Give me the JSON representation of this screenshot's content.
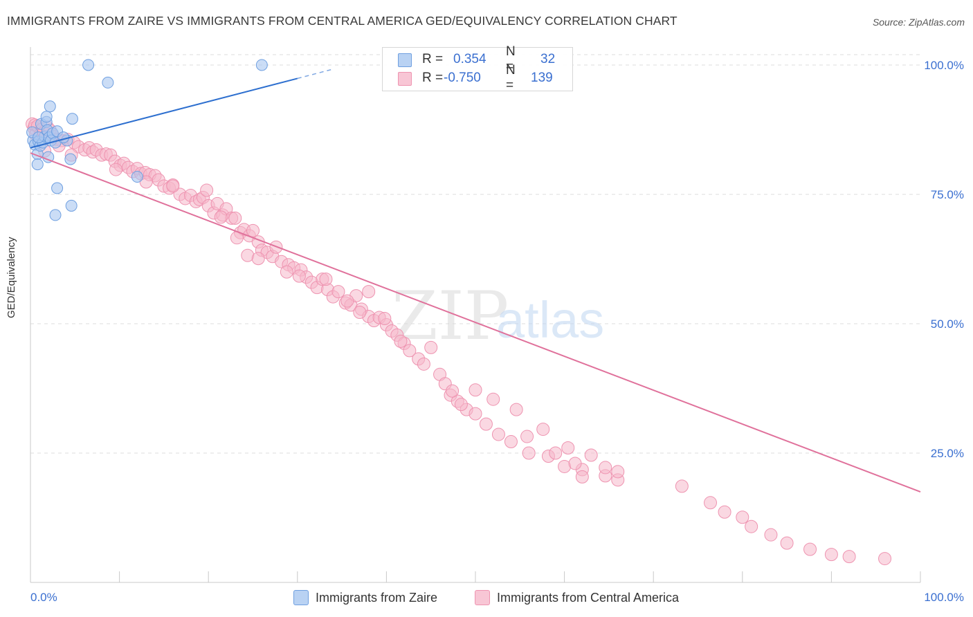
{
  "header": {
    "title": "IMMIGRANTS FROM ZAIRE VS IMMIGRANTS FROM CENTRAL AMERICA GED/EQUIVALENCY CORRELATION CHART",
    "source": "Source: ZipAtlas.com"
  },
  "watermark": {
    "zip": "ZIP",
    "atlas": "atlas"
  },
  "stats": {
    "zaire": {
      "r_label": "R =",
      "r_value": "0.354",
      "n_label": "N =",
      "n_value": "32"
    },
    "central_america": {
      "r_label": "R =",
      "r_value": "-0.750",
      "n_label": "N =",
      "n_value": "139"
    }
  },
  "legend": {
    "zaire": "Immigrants from Zaire",
    "central_america": "Immigrants from Central America"
  },
  "colors": {
    "zaire_fill": "#a9c7f0",
    "zaire_stroke": "#6e9fe0",
    "zaire_line": "#2d6fcf",
    "ca_fill": "#f6b8cb",
    "ca_stroke": "#ee93b0",
    "ca_line": "#e0719b",
    "tick_label": "#3a6fd0",
    "grid": "#dcdcdc"
  },
  "chart_data": {
    "type": "scatter",
    "title": "IMMIGRANTS FROM ZAIRE VS IMMIGRANTS FROM CENTRAL AMERICA GED/EQUIVALENCY CORRELATION CHART",
    "xlabel": "",
    "ylabel": "GED/Equivalency",
    "xlim": [
      0,
      100
    ],
    "ylim": [
      0,
      102
    ],
    "x_tick_labels": [
      "0.0%",
      "100.0%"
    ],
    "y_ticks": [
      25,
      50,
      75,
      100
    ],
    "y_tick_labels": [
      "25.0%",
      "50.0%",
      "75.0%",
      "100.0%"
    ],
    "grid": true,
    "legend_position": "bottom-center",
    "series": [
      {
        "name": "Immigrants from Zaire",
        "color": "#a9c7f0",
        "trend": {
          "x": [
            0,
            30,
            34
          ],
          "y": [
            84.0,
            97.4,
            99.2
          ],
          "dashed_after_x": 30
        },
        "points": [
          [
            0.3,
            85.4
          ],
          [
            0.5,
            84.6
          ],
          [
            0.8,
            82.8
          ],
          [
            0.9,
            85.2
          ],
          [
            1.1,
            84.4
          ],
          [
            1.2,
            88.6
          ],
          [
            1.4,
            85.0
          ],
          [
            1.6,
            86.2
          ],
          [
            1.8,
            89.0
          ],
          [
            1.9,
            87.4
          ],
          [
            2.1,
            86.0
          ],
          [
            2.3,
            85.4
          ],
          [
            2.5,
            86.8
          ],
          [
            2.8,
            85.0
          ],
          [
            3.0,
            87.2
          ],
          [
            2.2,
            92.0
          ],
          [
            1.8,
            90.0
          ],
          [
            4.7,
            89.6
          ],
          [
            4.1,
            85.4
          ],
          [
            2.0,
            82.2
          ],
          [
            0.8,
            80.8
          ],
          [
            3.7,
            86.0
          ],
          [
            6.5,
            100.0
          ],
          [
            8.7,
            96.6
          ],
          [
            26.0,
            100.0
          ],
          [
            3.0,
            76.2
          ],
          [
            2.8,
            71.0
          ],
          [
            4.6,
            72.8
          ],
          [
            4.5,
            81.8
          ],
          [
            12.0,
            78.4
          ],
          [
            0.2,
            87.0
          ],
          [
            0.9,
            86.0
          ]
        ]
      },
      {
        "name": "Immigrants from Central America",
        "color": "#f6b8cb",
        "trend": {
          "x": [
            0,
            100
          ],
          "y": [
            83.0,
            17.5
          ]
        },
        "points": [
          [
            0.2,
            88.6
          ],
          [
            0.4,
            87.8
          ],
          [
            0.5,
            88.4
          ],
          [
            0.6,
            86.6
          ],
          [
            0.8,
            88.2
          ],
          [
            1.1,
            86.6
          ],
          [
            1.3,
            87.6
          ],
          [
            1.5,
            87.0
          ],
          [
            1.9,
            88.0
          ],
          [
            2.2,
            87.4
          ],
          [
            2.6,
            86.2
          ],
          [
            3.0,
            85.6
          ],
          [
            3.5,
            85.4
          ],
          [
            4.2,
            85.6
          ],
          [
            4.9,
            85.0
          ],
          [
            5.4,
            84.2
          ],
          [
            6.1,
            83.6
          ],
          [
            6.6,
            84.0
          ],
          [
            7.0,
            83.2
          ],
          [
            7.4,
            83.6
          ],
          [
            8.0,
            82.6
          ],
          [
            8.5,
            82.8
          ],
          [
            9.0,
            82.6
          ],
          [
            9.5,
            81.4
          ],
          [
            10.1,
            80.6
          ],
          [
            10.5,
            81.0
          ],
          [
            11.0,
            80.2
          ],
          [
            11.5,
            79.4
          ],
          [
            12.0,
            80.0
          ],
          [
            12.4,
            79.0
          ],
          [
            12.9,
            79.2
          ],
          [
            13.4,
            78.8
          ],
          [
            14.0,
            78.6
          ],
          [
            14.4,
            77.8
          ],
          [
            15.0,
            76.6
          ],
          [
            15.6,
            76.2
          ],
          [
            16.0,
            76.8
          ],
          [
            16.8,
            75.0
          ],
          [
            17.4,
            74.2
          ],
          [
            18.0,
            74.8
          ],
          [
            18.6,
            73.6
          ],
          [
            19.0,
            74.0
          ],
          [
            19.4,
            74.4
          ],
          [
            20.0,
            72.8
          ],
          [
            20.6,
            71.4
          ],
          [
            21.0,
            73.2
          ],
          [
            21.6,
            71.0
          ],
          [
            22.0,
            72.2
          ],
          [
            22.6,
            70.4
          ],
          [
            23.0,
            70.4
          ],
          [
            23.6,
            67.6
          ],
          [
            24.0,
            68.2
          ],
          [
            24.6,
            67.0
          ],
          [
            25.0,
            68.0
          ],
          [
            25.6,
            65.8
          ],
          [
            26.0,
            64.2
          ],
          [
            26.6,
            63.8
          ],
          [
            27.2,
            63.0
          ],
          [
            27.6,
            64.8
          ],
          [
            28.2,
            62.0
          ],
          [
            29.0,
            61.4
          ],
          [
            29.6,
            60.8
          ],
          [
            30.4,
            60.4
          ],
          [
            31.0,
            59.0
          ],
          [
            31.6,
            58.0
          ],
          [
            32.2,
            57.0
          ],
          [
            32.8,
            58.6
          ],
          [
            33.4,
            56.6
          ],
          [
            34.0,
            55.2
          ],
          [
            34.6,
            56.2
          ],
          [
            35.4,
            54.0
          ],
          [
            36.0,
            53.6
          ],
          [
            36.6,
            55.4
          ],
          [
            37.2,
            52.8
          ],
          [
            38.0,
            51.4
          ],
          [
            38.6,
            50.6
          ],
          [
            39.2,
            51.2
          ],
          [
            40.0,
            49.8
          ],
          [
            40.6,
            48.6
          ],
          [
            41.2,
            47.8
          ],
          [
            42.0,
            46.2
          ],
          [
            42.6,
            44.8
          ],
          [
            43.6,
            43.2
          ],
          [
            44.2,
            42.2
          ],
          [
            45.0,
            45.4
          ],
          [
            46.0,
            40.2
          ],
          [
            46.6,
            38.4
          ],
          [
            47.2,
            36.2
          ],
          [
            48.0,
            35.0
          ],
          [
            49.0,
            33.4
          ],
          [
            50.0,
            32.6
          ],
          [
            51.2,
            30.6
          ],
          [
            52.6,
            28.6
          ],
          [
            54.0,
            27.2
          ],
          [
            56.0,
            25.0
          ],
          [
            58.2,
            24.4
          ],
          [
            60.0,
            22.4
          ],
          [
            62.0,
            21.8
          ],
          [
            64.6,
            20.6
          ],
          [
            66.0,
            19.8
          ],
          [
            1.6,
            83.4
          ],
          [
            3.2,
            84.4
          ],
          [
            4.6,
            82.6
          ],
          [
            9.6,
            79.8
          ],
          [
            13.0,
            77.4
          ],
          [
            16.0,
            76.6
          ],
          [
            19.8,
            75.8
          ],
          [
            21.4,
            70.6
          ],
          [
            23.2,
            66.6
          ],
          [
            24.4,
            63.2
          ],
          [
            25.6,
            62.6
          ],
          [
            28.8,
            60.0
          ],
          [
            30.2,
            59.2
          ],
          [
            33.2,
            58.6
          ],
          [
            35.6,
            54.4
          ],
          [
            37.0,
            52.2
          ],
          [
            38.0,
            56.2
          ],
          [
            39.8,
            51.0
          ],
          [
            41.6,
            46.6
          ],
          [
            47.4,
            37.0
          ],
          [
            48.4,
            34.4
          ],
          [
            50.0,
            37.2
          ],
          [
            52.0,
            35.4
          ],
          [
            54.6,
            33.4
          ],
          [
            55.8,
            28.2
          ],
          [
            57.6,
            29.6
          ],
          [
            59.0,
            25.0
          ],
          [
            60.4,
            26.0
          ],
          [
            61.2,
            23.0
          ],
          [
            62.0,
            20.4
          ],
          [
            63.0,
            24.6
          ],
          [
            64.6,
            22.2
          ],
          [
            66.0,
            21.4
          ],
          [
            73.2,
            18.6
          ],
          [
            76.4,
            15.4
          ],
          [
            78.0,
            13.6
          ],
          [
            80.0,
            12.6
          ],
          [
            81.0,
            10.8
          ],
          [
            83.2,
            9.2
          ],
          [
            85.0,
            7.6
          ],
          [
            87.6,
            6.4
          ],
          [
            90.0,
            5.4
          ],
          [
            92.0,
            5.0
          ],
          [
            96.0,
            4.6
          ]
        ]
      }
    ]
  }
}
